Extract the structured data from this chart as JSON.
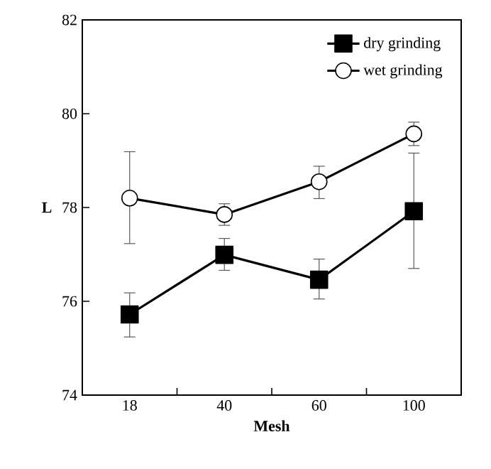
{
  "chart_data": {
    "type": "line",
    "xlabel": "Mesh",
    "ylabel": "L",
    "categories": [
      "18",
      "40",
      "60",
      "100"
    ],
    "series": [
      {
        "name": "dry grinding",
        "color": "#000000",
        "marker": "square",
        "values": [
          75.72,
          76.99,
          76.46,
          77.92
        ],
        "errors": [
          [
            75.24,
            76.18
          ],
          [
            76.66,
            77.34
          ],
          [
            76.05,
            76.9
          ],
          [
            76.7,
            79.16
          ]
        ]
      },
      {
        "name": "wet grinding",
        "color": "#000000",
        "marker": "circle",
        "values": [
          78.2,
          77.85,
          78.55,
          79.57
        ],
        "errors": [
          [
            77.23,
            79.19
          ],
          [
            77.62,
            78.08
          ],
          [
            78.19,
            78.88
          ],
          [
            79.32,
            79.82
          ]
        ]
      }
    ],
    "ylim": [
      74,
      82
    ],
    "yticks": [
      74,
      76,
      78,
      80,
      82
    ],
    "grid": false,
    "legend": "top right",
    "line_style": "solid"
  }
}
